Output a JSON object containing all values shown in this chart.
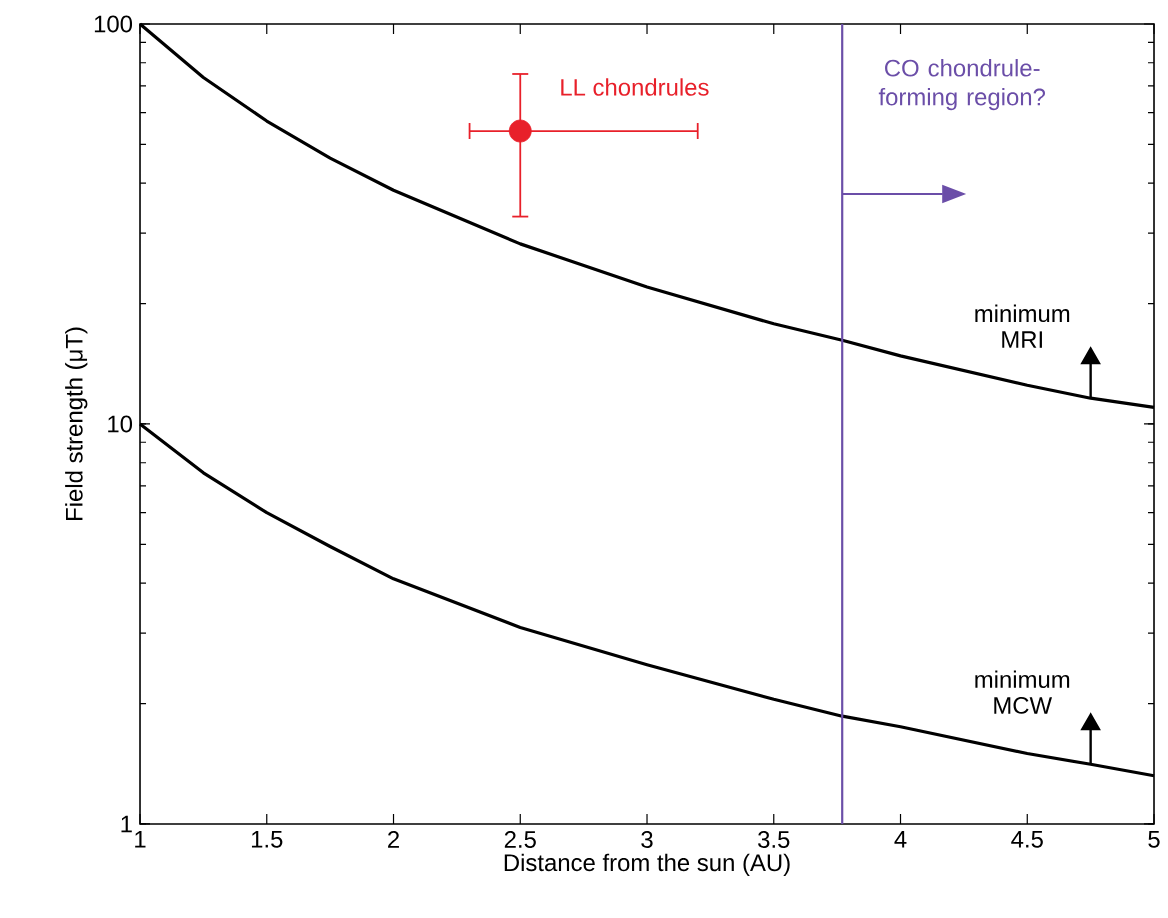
{
  "chart_data": {
    "type": "line",
    "xlabel": "Distance from the sun (AU)",
    "ylabel": "Field strength (μT)",
    "log": "y",
    "xlim": [
      1,
      5
    ],
    "ylim": [
      1,
      100
    ],
    "xticks": [
      1,
      1.5,
      2,
      2.5,
      3,
      3.5,
      4,
      4.5,
      5
    ],
    "yticks": [
      1,
      10,
      100
    ],
    "series": [
      {
        "name": "minimum MRI",
        "color": "#000000",
        "x": [
          1,
          1.25,
          1.5,
          1.75,
          2,
          2.5,
          3,
          3.5,
          3.77,
          4,
          4.5,
          4.75,
          5
        ],
        "values": [
          100,
          73.5,
          57.2,
          46.2,
          38.4,
          28.2,
          22.0,
          17.8,
          16.2,
          14.8,
          12.5,
          11.6,
          11.0
        ]
      },
      {
        "name": "minimum MCW",
        "color": "#000000",
        "x": [
          1,
          1.25,
          1.5,
          1.75,
          2,
          2.5,
          3,
          3.5,
          3.77,
          4,
          4.5,
          4.75,
          5
        ],
        "values": [
          10,
          7.55,
          6.0,
          4.94,
          4.1,
          3.1,
          2.5,
          2.05,
          1.86,
          1.75,
          1.5,
          1.41,
          1.32
        ]
      },
      {
        "name": "LL chondrules",
        "type": "scatter",
        "color": "#e8202a",
        "marker": "circle",
        "x": [
          2.5
        ],
        "values": [
          54
        ],
        "errors": [
          [
            33,
            75
          ]
        ],
        "xerrors": [
          [
            2.3,
            3.2
          ]
        ]
      }
    ],
    "ref_lines": [
      {
        "axis": "x",
        "value": 3.77,
        "label": "CO chondrule-forming region?",
        "color": "#6b4ea8"
      }
    ]
  }
}
